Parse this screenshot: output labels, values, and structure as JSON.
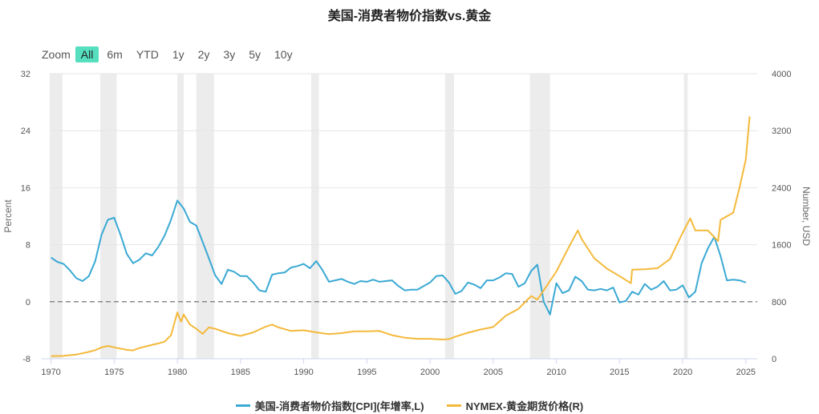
{
  "page": {
    "title": "美国-消费者物价指数vs.黄金"
  },
  "zoom": {
    "label": "Zoom",
    "buttons": [
      "All",
      "6m",
      "YTD",
      "1y",
      "2y",
      "3y",
      "5y",
      "10y"
    ],
    "active": "All"
  },
  "colors": {
    "cpi": "#3aa9d4",
    "gold": "#f4b93a",
    "recession": "#ececec",
    "zero_line": "#888888",
    "zoom_active": "#55dfbf"
  },
  "chart_data": {
    "type": "line",
    "title": "美国-消费者物价指数vs.黄金",
    "ylabel_left": "Percent",
    "ylabel_right": "Number, USD",
    "x_ticks": [
      "1970",
      "1975",
      "1980",
      "1985",
      "1990",
      "1995",
      "2000",
      "2005",
      "2010",
      "2015",
      "2020",
      "2025"
    ],
    "y_left_ticks": [
      "32",
      "24",
      "16",
      "8",
      "0",
      "-8"
    ],
    "y_right_ticks": [
      "4000",
      "3200",
      "2400",
      "1600",
      "800",
      "0"
    ],
    "xlim": [
      1969.9,
      2025.9
    ],
    "ylim_left": [
      -8,
      32
    ],
    "ylim_right": [
      0,
      4000
    ],
    "recessions": [
      [
        1969.9,
        1970.9
      ],
      [
        1973.9,
        1975.2
      ],
      [
        1980.0,
        1980.5
      ],
      [
        1981.5,
        1982.9
      ],
      [
        1990.6,
        1991.2
      ],
      [
        2001.2,
        2001.9
      ],
      [
        2007.9,
        2009.5
      ],
      [
        2020.1,
        2020.4
      ]
    ],
    "series": [
      {
        "name": "美国-消费者物价指数[CPI](年增率,L)",
        "axis": "left",
        "x": [
          1970,
          1970.5,
          1971,
          1971.5,
          1972,
          1972.5,
          1973,
          1973.5,
          1974,
          1974.5,
          1975,
          1975.5,
          1976,
          1976.5,
          1977,
          1977.5,
          1978,
          1978.5,
          1979,
          1979.5,
          1980,
          1980.5,
          1981,
          1981.5,
          1982,
          1982.5,
          1983,
          1983.5,
          1984,
          1984.5,
          1985,
          1985.5,
          1986,
          1986.5,
          1987,
          1987.5,
          1988,
          1988.5,
          1989,
          1989.5,
          1990,
          1990.5,
          1991,
          1991.5,
          1992,
          1992.5,
          1993,
          1993.5,
          1994,
          1994.5,
          1995,
          1995.5,
          1996,
          1996.5,
          1997,
          1997.5,
          1998,
          1998.5,
          1999,
          1999.5,
          2000,
          2000.5,
          2001,
          2001.5,
          2002,
          2002.5,
          2003,
          2003.5,
          2004,
          2004.5,
          2005,
          2005.5,
          2006,
          2006.5,
          2007,
          2007.5,
          2008,
          2008.5,
          2009,
          2009.5,
          2010,
          2010.5,
          2011,
          2011.5,
          2012,
          2012.5,
          2013,
          2013.5,
          2014,
          2014.5,
          2015,
          2015.5,
          2016,
          2016.5,
          2017,
          2017.5,
          2018,
          2018.5,
          2019,
          2019.5,
          2020,
          2020.5,
          2021,
          2021.5,
          2022,
          2022.5,
          2023,
          2023.5,
          2024,
          2024.5,
          2025
        ],
        "values": [
          6.2,
          5.6,
          5.3,
          4.4,
          3.3,
          2.9,
          3.6,
          5.7,
          9.4,
          11.5,
          11.8,
          9.4,
          6.7,
          5.4,
          5.9,
          6.8,
          6.5,
          7.7,
          9.3,
          11.5,
          14.2,
          13.1,
          11.2,
          10.7,
          8.4,
          6.1,
          3.7,
          2.5,
          4.5,
          4.2,
          3.6,
          3.6,
          2.7,
          1.6,
          1.4,
          3.8,
          4.0,
          4.1,
          4.8,
          5.0,
          5.3,
          4.7,
          5.7,
          4.4,
          2.8,
          3.0,
          3.2,
          2.8,
          2.5,
          2.9,
          2.8,
          3.1,
          2.8,
          2.9,
          3.0,
          2.2,
          1.6,
          1.7,
          1.7,
          2.2,
          2.7,
          3.6,
          3.7,
          2.7,
          1.1,
          1.5,
          2.7,
          2.4,
          1.9,
          3.0,
          3.0,
          3.4,
          4.0,
          3.9,
          2.1,
          2.6,
          4.3,
          5.2,
          0.0,
          -1.8,
          2.6,
          1.2,
          1.6,
          3.5,
          2.9,
          1.7,
          1.6,
          1.8,
          1.6,
          2.0,
          -0.1,
          0.1,
          1.4,
          1.0,
          2.5,
          1.7,
          2.1,
          2.9,
          1.6,
          1.7,
          2.3,
          0.6,
          1.4,
          5.4,
          7.5,
          9.1,
          6.4,
          3.0,
          3.1,
          3.0,
          2.7
        ]
      },
      {
        "name": "NYMEX-黄金期货价格(R)",
        "axis": "right",
        "x": [
          1970,
          1971,
          1972,
          1973,
          1973.5,
          1974,
          1974.5,
          1975,
          1976,
          1976.5,
          1977,
          1978,
          1978.5,
          1979,
          1979.5,
          1980,
          1980.3,
          1980.5,
          1981,
          1981.5,
          1982,
          1982.5,
          1983,
          1984,
          1985,
          1986,
          1987,
          1987.5,
          1988,
          1989,
          1990,
          1991,
          1992,
          1993,
          1994,
          1995,
          1996,
          1997,
          1998,
          1999,
          2000,
          2001,
          2001.5,
          2002,
          2003,
          2004,
          2005,
          2006,
          2007,
          2008,
          2008.5,
          2009,
          2010,
          2011,
          2011.7,
          2012,
          2013,
          2014,
          2015,
          2015.9,
          2016,
          2017,
          2018,
          2019,
          2020,
          2020.6,
          2021,
          2022,
          2022.8,
          2023,
          2024,
          2024.5,
          2025,
          2025.3
        ],
        "values": [
          36,
          40,
          58,
          97,
          120,
          160,
          180,
          160,
          125,
          117,
          150,
          195,
          215,
          240,
          330,
          650,
          520,
          620,
          480,
          420,
          350,
          440,
          420,
          360,
          320,
          370,
          450,
          480,
          440,
          390,
          400,
          370,
          345,
          360,
          385,
          385,
          390,
          330,
          295,
          280,
          280,
          270,
          275,
          310,
          365,
          410,
          445,
          605,
          700,
          880,
          830,
          960,
          1225,
          1570,
          1800,
          1680,
          1410,
          1265,
          1160,
          1060,
          1250,
          1255,
          1270,
          1400,
          1770,
          1970,
          1800,
          1800,
          1650,
          1950,
          2050,
          2400,
          2800,
          3400
        ]
      }
    ]
  },
  "legend": {
    "items": [
      {
        "label": "美国-消费者物价指数[CPI](年增率,L)",
        "color": "#3aa9d4"
      },
      {
        "label": "NYMEX-黄金期货价格(R)",
        "color": "#f4b93a"
      }
    ]
  }
}
